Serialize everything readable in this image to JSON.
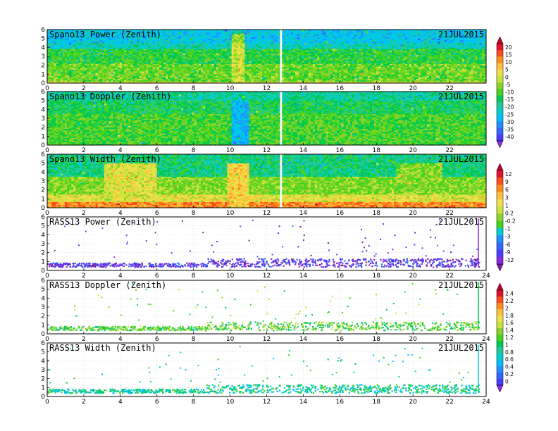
{
  "chart_data": [
    {
      "type": "heatmap",
      "title": "Spano13 Power (Zenith)",
      "date": "21JUL2015",
      "x_ticks": [
        "0",
        "2",
        "4",
        "6",
        "8",
        "10",
        "12",
        "14",
        "16",
        "18",
        "20",
        "22"
      ],
      "y_ticks": [
        "0",
        "1",
        "2",
        "3",
        "4",
        "5",
        "6"
      ],
      "xlim": [
        0,
        24
      ],
      "ylim": [
        0,
        6
      ],
      "colorbar_ticks": [
        "20",
        "15",
        "10",
        "5",
        "0",
        "-5",
        "-10",
        "-15",
        "-20",
        "-25",
        "-30",
        "-35",
        "-40"
      ],
      "description_of_pattern": "mostly green (-10 to -20) with yellow band near 0-2 km and cyan/blue above 4 km; data gaps near hour 10.2 and 12.9"
    },
    {
      "type": "heatmap",
      "title": "Spano13 Doppler (Zenith)",
      "date": "21JUL2015",
      "x_ticks": [
        "0",
        "2",
        "4",
        "6",
        "8",
        "10",
        "12",
        "14",
        "16",
        "18",
        "20",
        "22"
      ],
      "y_ticks": [
        "0",
        "1",
        "2",
        "3",
        "4",
        "5",
        "6"
      ],
      "xlim": [
        0,
        24
      ],
      "ylim": [
        0,
        6
      ]
    },
    {
      "type": "heatmap",
      "title": "Spano13 Width (Zenith)",
      "date": "21JUL2015",
      "x_ticks": [
        "0",
        "2",
        "4",
        "6",
        "8",
        "10",
        "12",
        "14",
        "16",
        "18",
        "20",
        "22"
      ],
      "y_ticks": [
        "0",
        "1",
        "2",
        "3",
        "4",
        "5",
        "6"
      ],
      "xlim": [
        0,
        24
      ],
      "ylim": [
        0,
        6
      ],
      "colorbar_ticks": [
        "12",
        "9",
        "6",
        "3",
        "1",
        "0.2",
        "-0.2",
        "-1",
        "-3",
        "-6",
        "-9",
        "-12"
      ]
    },
    {
      "type": "scatter",
      "title": "RASS13 Power (Zenith)",
      "date": "21JUL2015",
      "x_ticks": [
        "0",
        "2",
        "4",
        "6",
        "8",
        "10",
        "12",
        "14",
        "16",
        "18",
        "20",
        "22",
        "24"
      ],
      "y_ticks": [
        "0",
        "1",
        "2",
        "3",
        "4",
        "5",
        "6"
      ],
      "xlim": [
        0,
        24
      ],
      "ylim": [
        0,
        6
      ]
    },
    {
      "type": "scatter",
      "title": "RASS13 Doppler (Zenith)",
      "date": "21JUL2015",
      "x_ticks": [
        "0",
        "2",
        "4",
        "6",
        "8",
        "10",
        "12",
        "14",
        "16",
        "18",
        "20",
        "22",
        "24"
      ],
      "y_ticks": [
        "0",
        "1",
        "2",
        "3",
        "4",
        "5",
        "6"
      ],
      "xlim": [
        0,
        24
      ],
      "ylim": [
        0,
        6
      ],
      "colorbar_ticks": [
        "2.4",
        "2.2",
        "2",
        "1.8",
        "1.6",
        "1.4",
        "1.2",
        "1",
        "0.8",
        "0.6",
        "0.4",
        "0.2",
        "0"
      ]
    },
    {
      "type": "scatter",
      "title": "RASS13 Width (Zenith)",
      "date": "21JUL2015",
      "x_ticks": [
        "0",
        "2",
        "4",
        "6",
        "8",
        "10",
        "12",
        "14",
        "16",
        "18",
        "20",
        "22",
        "24"
      ],
      "y_ticks": [
        "0",
        "1",
        "2",
        "3",
        "4",
        "5",
        "6"
      ],
      "xlim": [
        0,
        24
      ],
      "ylim": [
        0,
        6
      ]
    }
  ],
  "palette": [
    "#7a1fa2",
    "#8a2be2",
    "#4b3cff",
    "#3366ff",
    "#1e90ff",
    "#00bfff",
    "#00ced1",
    "#20c997",
    "#00c853",
    "#44d41e",
    "#8bd32a",
    "#c8e33a",
    "#f2e04a",
    "#ffbe3b",
    "#ff8c1a",
    "#ff4b1f",
    "#e3102e",
    "#c2002d"
  ]
}
